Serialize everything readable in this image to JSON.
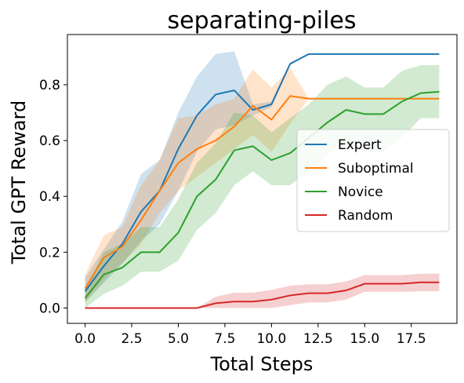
{
  "chart_data": {
    "type": "line",
    "title": "separating-piles",
    "xlabel": "Total Steps",
    "ylabel": "Total GPT Reward",
    "xlim": [
      -0.95,
      19.95
    ],
    "ylim": [
      -0.055,
      0.98
    ],
    "xticks": [
      0.0,
      2.5,
      5.0,
      7.5,
      10.0,
      12.5,
      15.0,
      17.5
    ],
    "xtick_labels": [
      "0.0",
      "2.5",
      "5.0",
      "7.5",
      "10.0",
      "12.5",
      "15.0",
      "17.5"
    ],
    "yticks": [
      0.0,
      0.2,
      0.4,
      0.6,
      0.8
    ],
    "ytick_labels": [
      "0.0",
      "0.2",
      "0.4",
      "0.6",
      "0.8"
    ],
    "grid": false,
    "legend_position": "center-right",
    "x": [
      0,
      1,
      2,
      3,
      4,
      5,
      6,
      7,
      8,
      9,
      10,
      11,
      12,
      13,
      14,
      15,
      16,
      17,
      18,
      19
    ],
    "series": [
      {
        "name": "Expert",
        "color": "#1f77b4",
        "values": [
          0.06,
          0.15,
          0.23,
          0.345,
          0.42,
          0.57,
          0.69,
          0.765,
          0.78,
          0.71,
          0.73,
          0.875,
          0.91,
          0.91,
          0.91,
          0.91,
          0.91,
          0.91,
          0.91,
          0.91
        ],
        "lower": [
          0.02,
          0.09,
          0.16,
          0.24,
          0.3,
          0.42,
          0.56,
          0.64,
          0.655,
          0.69,
          0.72,
          0.87,
          0.91,
          0.91,
          0.91,
          0.91,
          0.91,
          0.91,
          0.91,
          0.91
        ],
        "upper": [
          0.11,
          0.21,
          0.31,
          0.48,
          0.53,
          0.7,
          0.83,
          0.91,
          0.92,
          0.73,
          0.74,
          0.88,
          0.91,
          0.91,
          0.91,
          0.91,
          0.91,
          0.91,
          0.91,
          0.91
        ]
      },
      {
        "name": "Suboptimal",
        "color": "#ff7f0e",
        "values": [
          0.07,
          0.18,
          0.22,
          0.315,
          0.42,
          0.52,
          0.57,
          0.6,
          0.65,
          0.725,
          0.675,
          0.76,
          0.75,
          0.75,
          0.75,
          0.75,
          0.75,
          0.75,
          0.75,
          0.75
        ],
        "lower": [
          0.02,
          0.1,
          0.16,
          0.23,
          0.34,
          0.42,
          0.47,
          0.52,
          0.57,
          0.62,
          0.56,
          0.66,
          0.75,
          0.75,
          0.75,
          0.75,
          0.75,
          0.75,
          0.75,
          0.75
        ],
        "upper": [
          0.12,
          0.26,
          0.29,
          0.44,
          0.53,
          0.68,
          0.69,
          0.73,
          0.75,
          0.855,
          0.79,
          0.86,
          0.75,
          0.75,
          0.75,
          0.75,
          0.75,
          0.75,
          0.75,
          0.75
        ]
      },
      {
        "name": "Novice",
        "color": "#2ca02c",
        "values": [
          0.035,
          0.12,
          0.145,
          0.2,
          0.2,
          0.27,
          0.4,
          0.46,
          0.565,
          0.58,
          0.53,
          0.555,
          0.61,
          0.665,
          0.71,
          0.695,
          0.695,
          0.74,
          0.77,
          0.775
        ],
        "lower": [
          0.0,
          0.05,
          0.08,
          0.13,
          0.13,
          0.17,
          0.28,
          0.34,
          0.44,
          0.49,
          0.44,
          0.44,
          0.49,
          0.55,
          0.59,
          0.56,
          0.56,
          0.61,
          0.68,
          0.68
        ],
        "upper": [
          0.07,
          0.2,
          0.23,
          0.29,
          0.29,
          0.39,
          0.52,
          0.59,
          0.7,
          0.69,
          0.63,
          0.68,
          0.73,
          0.8,
          0.83,
          0.79,
          0.79,
          0.85,
          0.87,
          0.87
        ]
      },
      {
        "name": "Random",
        "color": "#d62728",
        "values": [
          0.0,
          0.0,
          0.0,
          0.0,
          0.0,
          0.0,
          0.0,
          0.017,
          0.023,
          0.023,
          0.03,
          0.045,
          0.053,
          0.053,
          0.063,
          0.087,
          0.087,
          0.087,
          0.092,
          0.092
        ],
        "lower": [
          0.0,
          0.0,
          0.0,
          0.0,
          0.0,
          0.0,
          0.0,
          0.0,
          0.0,
          0.0,
          0.0,
          0.01,
          0.02,
          0.02,
          0.03,
          0.058,
          0.058,
          0.058,
          0.06,
          0.06
        ],
        "upper": [
          0.0,
          0.0,
          0.0,
          0.0,
          0.0,
          0.0,
          0.0,
          0.04,
          0.055,
          0.055,
          0.065,
          0.08,
          0.085,
          0.085,
          0.095,
          0.118,
          0.118,
          0.118,
          0.123,
          0.123
        ]
      }
    ]
  }
}
